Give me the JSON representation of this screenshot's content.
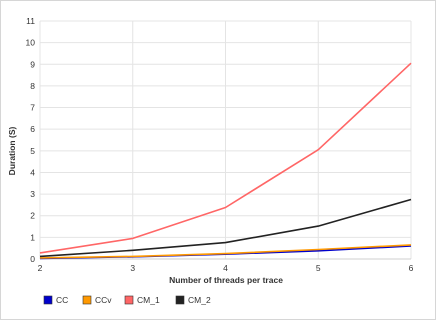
{
  "chart_data": {
    "type": "line",
    "title": "",
    "xlabel": "Number of threads per trace",
    "ylabel": "Duration (S)",
    "x": [
      2,
      3,
      4,
      5,
      6
    ],
    "xlim": [
      2,
      6
    ],
    "ylim": [
      0,
      11
    ],
    "yticks": [
      0,
      1,
      2,
      3,
      4,
      5,
      6,
      7,
      8,
      9,
      10,
      11
    ],
    "grid": true,
    "legend_position": "bottom-left",
    "series": [
      {
        "name": "CC",
        "color": "#0000cc",
        "values": [
          0.03,
          0.1,
          0.22,
          0.38,
          0.6
        ]
      },
      {
        "name": "CCv",
        "color": "#ff9900",
        "values": [
          0.05,
          0.12,
          0.25,
          0.44,
          0.65
        ]
      },
      {
        "name": "CM_1",
        "color": "#ff6666",
        "values": [
          0.28,
          0.95,
          2.38,
          5.05,
          9.05
        ]
      },
      {
        "name": "CM_2",
        "color": "#222222",
        "values": [
          0.12,
          0.4,
          0.76,
          1.52,
          2.75
        ]
      }
    ]
  }
}
